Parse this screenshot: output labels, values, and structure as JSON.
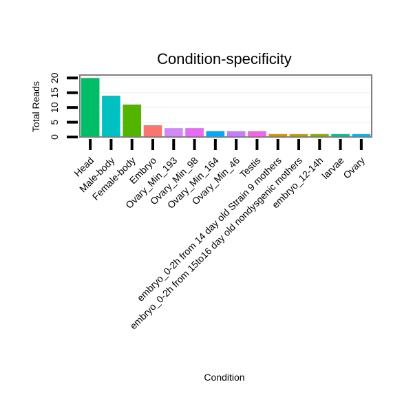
{
  "chart_data": {
    "type": "bar",
    "title": "Condition-specificity",
    "xlabel": "Condition",
    "ylabel": "Total Reads",
    "ylim": [
      0,
      21
    ],
    "yticks": [
      0,
      5,
      10,
      15,
      20
    ],
    "categories": [
      "Head",
      "Male-body",
      "Female-body",
      "Embryo",
      "Ovary_Min_193",
      "Ovary_Min_98",
      "Ovary_Min_164",
      "Ovary_Min_46",
      "Testis",
      "embryo_0-2h from 14 day old Strain 9 mothers",
      "embryo_0-2h from 15to16 day old nondysgenic mothers",
      "embryo_12-14h",
      "larvae",
      "Ovary"
    ],
    "values": [
      20,
      14,
      11,
      4,
      3,
      3,
      2,
      2,
      2,
      1,
      1,
      1,
      1,
      1
    ],
    "colors": [
      "#00BE67",
      "#00C1C1",
      "#53B400",
      "#F8766D",
      "#D388F8",
      "#E76BF3",
      "#00A9FF",
      "#C77CFF",
      "#F564E3",
      "#D39200",
      "#B79F00",
      "#8AAB00",
      "#00BF96",
      "#00B4F0"
    ],
    "grid": true,
    "legend": "none"
  }
}
